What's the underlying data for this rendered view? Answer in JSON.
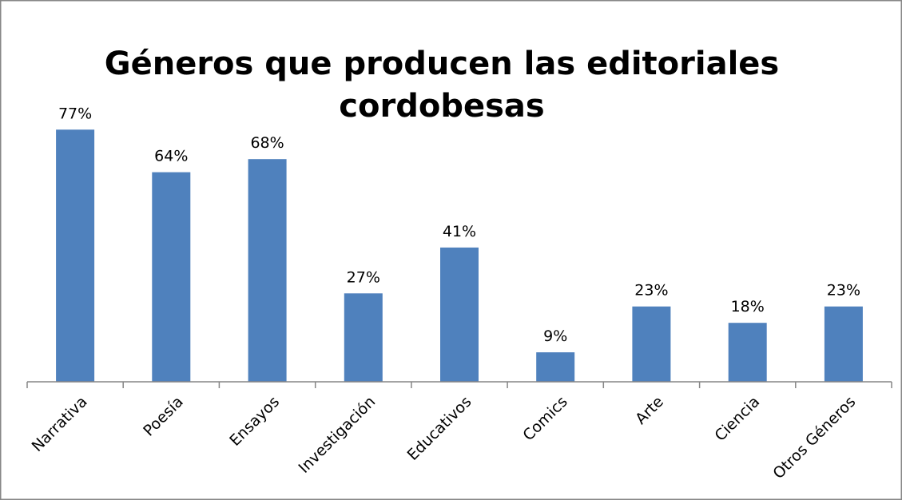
{
  "chart_data": {
    "type": "bar",
    "title": "Géneros que producen las editoriales cordobesas",
    "title_lines": [
      "Géneros que producen las editoriales",
      "cordobesas"
    ],
    "categories": [
      "Narrativa",
      "Poesía",
      "Ensayos",
      "Investigación",
      "Educativos",
      "Comics",
      "Arte",
      "Ciencia",
      "Otros Géneros"
    ],
    "values": [
      77,
      64,
      68,
      27,
      41,
      9,
      23,
      18,
      23
    ],
    "value_labels": [
      "77%",
      "64%",
      "68%",
      "27%",
      "41%",
      "9%",
      "23%",
      "18%",
      "23%"
    ],
    "value_unit": "%",
    "ylim": [
      0,
      100
    ],
    "grid": false,
    "legend": "none",
    "bar_color": "#4F81BD",
    "axis_color": "#868686",
    "frame_color": "#868686"
  }
}
